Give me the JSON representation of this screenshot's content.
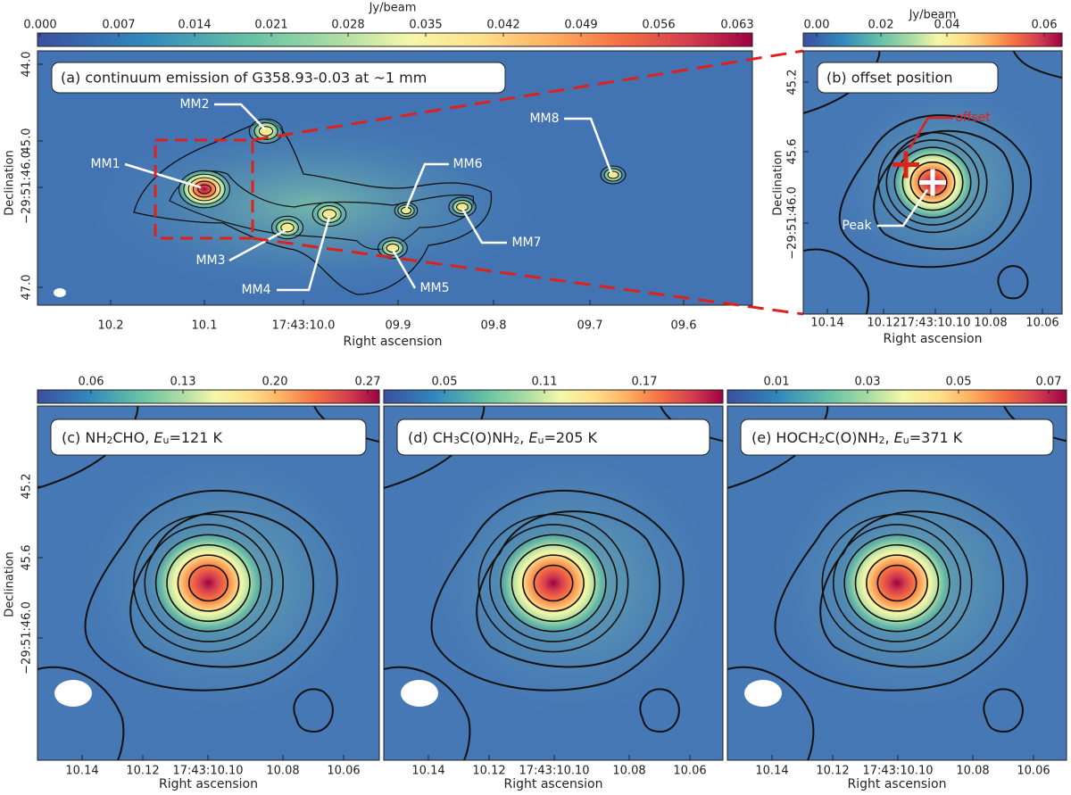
{
  "panel_a": {
    "label": "(a) continuum emission of G358.93-0.03 at ~1 mm",
    "colorbar_label": "Jy/beam",
    "colorbar_ticks": [
      "0.000",
      "0.007",
      "0.014",
      "0.021",
      "0.028",
      "0.035",
      "0.042",
      "0.049",
      "0.056",
      "0.063"
    ],
    "y_label": "Declination",
    "y_ticks": [
      "44.0",
      "45.0",
      "−29:51:46.0",
      "47.0"
    ],
    "x_label": "Right ascension",
    "x_ticks": [
      "10.2",
      "10.1",
      "17:43:10.0",
      "09.9",
      "09.8",
      "09.7",
      "09.6"
    ],
    "sources": [
      "MM1",
      "MM2",
      "MM3",
      "MM4",
      "MM5",
      "MM6",
      "MM7",
      "MM8"
    ]
  },
  "panel_b": {
    "label": "(b) offset position",
    "colorbar_label": "Jy/beam",
    "colorbar_ticks": [
      "0.00",
      "0.02",
      "0.04",
      "0.06"
    ],
    "y_label": "Declination",
    "y_ticks": [
      "45.2",
      "45.6",
      "−29:51:46.0"
    ],
    "x_label": "Right ascension",
    "x_ticks": [
      "10.14",
      "10.12",
      "17:43:10.10",
      "10.08",
      "10.06"
    ],
    "annotations": [
      "offset",
      "Peak"
    ]
  },
  "panels": [
    {
      "label_parts": [
        "(c) NH",
        "2",
        "CHO, ",
        "E",
        "u",
        "=121 K"
      ],
      "colorbar_ticks": [
        "0.06",
        "0.13",
        "0.20",
        "0.27"
      ],
      "x_label": "Right ascension",
      "x_ticks": [
        "10.14",
        "10.12",
        "17:43:10.10",
        "10.08",
        "10.06"
      ],
      "y_label": "Declination",
      "y_ticks": [
        "45.2",
        "45.6",
        "−29:51:46.0"
      ]
    },
    {
      "label_parts": [
        "(d) CH",
        "3",
        "C(O)NH",
        "2",
        ", ",
        "E",
        "u",
        "=205 K"
      ],
      "colorbar_ticks": [
        "0.05",
        "0.11",
        "0.17"
      ],
      "x_label": "Right ascension",
      "x_ticks": [
        "10.14",
        "10.12",
        "17:43:10.10",
        "10.08",
        "10.06"
      ]
    },
    {
      "label_parts": [
        "(e) HOCH",
        "2",
        "C(O)NH",
        "2",
        ", ",
        "E",
        "u",
        "=371 K"
      ],
      "colorbar_ticks": [
        "0.01",
        "0.03",
        "0.05",
        "0.07"
      ],
      "x_label": "Right ascension",
      "x_ticks": [
        "10.14",
        "10.12",
        "17:43:10.10",
        "10.08",
        "10.06"
      ]
    }
  ]
}
